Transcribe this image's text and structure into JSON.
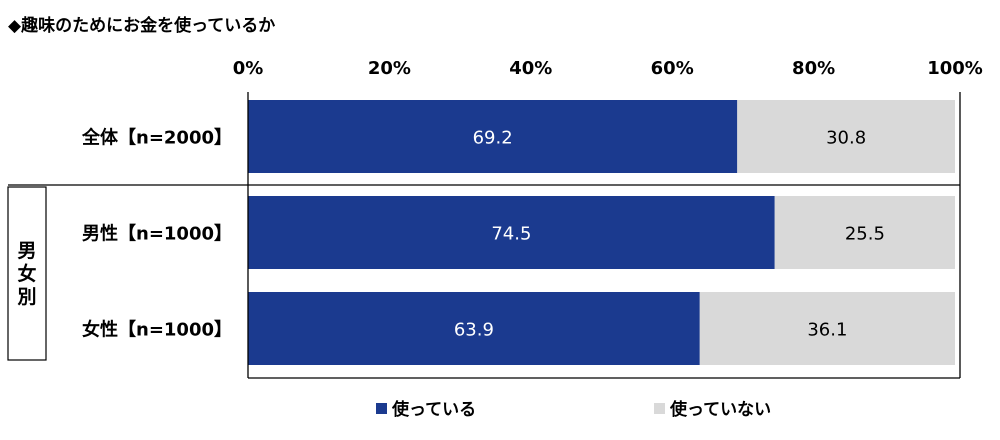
{
  "title": "◆趣味のためにお金を使っているか",
  "group_label": "男女別",
  "colors": {
    "used": "#1b3a8f",
    "not_used": "#d9d9d9",
    "axis": "#000000"
  },
  "chart_data": {
    "type": "bar",
    "orientation": "horizontal",
    "stacked": true,
    "percent": true,
    "title": "◆趣味のためにお金を使っているか",
    "categories": [
      "全体【n=2000】",
      "男性【n=1000】",
      "女性【n=1000】"
    ],
    "series": [
      {
        "name": "使っている",
        "values": [
          69.2,
          74.5,
          63.9
        ]
      },
      {
        "name": "使っていない",
        "values": [
          30.8,
          25.5,
          36.1
        ]
      }
    ],
    "xlim": [
      0,
      100
    ],
    "xticks": [
      "0%",
      "20%",
      "40%",
      "60%",
      "80%",
      "100%"
    ],
    "grid": false,
    "legend_position": "bottom"
  }
}
